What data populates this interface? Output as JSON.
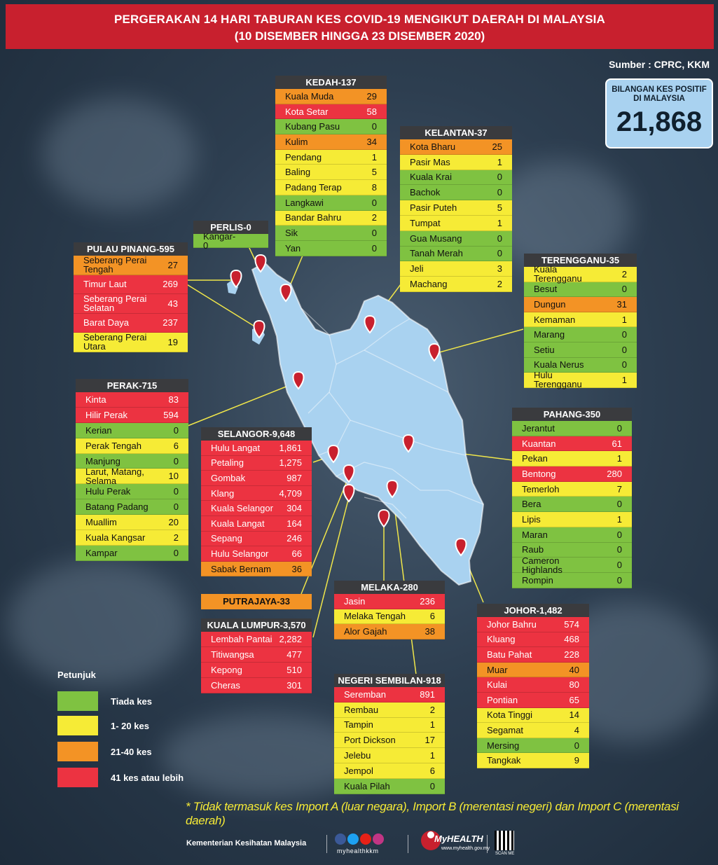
{
  "title_line1": "PERGERAKAN 14 HARI TABURAN KES COVID-19 MENGIKUT DAERAH DI MALAYSIA",
  "title_line2": "(10 DISEMBER HINGGA 23 DISEMBER 2020)",
  "source": "Sumber : CPRC, KKM",
  "total": {
    "label": "BILANGAN KES POSITIF DI MALAYSIA",
    "value": "21,868"
  },
  "colors": {
    "red": "#ec3341",
    "orange": "#f39325",
    "yellow": "#f6eb36",
    "green": "#7fc241",
    "title_red": "#c8202e"
  },
  "states": {
    "kedah": {
      "header": "KEDAH-137",
      "rows": [
        {
          "name": "Kuala Muda",
          "value": "29",
          "level": "orange"
        },
        {
          "name": "Kota Setar",
          "value": "58",
          "level": "red"
        },
        {
          "name": "Kubang Pasu",
          "value": "0",
          "level": "green"
        },
        {
          "name": "Kulim",
          "value": "34",
          "level": "orange"
        },
        {
          "name": "Pendang",
          "value": "1",
          "level": "yellow"
        },
        {
          "name": "Baling",
          "value": "5",
          "level": "yellow"
        },
        {
          "name": "Padang Terap",
          "value": "8",
          "level": "yellow"
        },
        {
          "name": "Langkawi",
          "value": "0",
          "level": "green"
        },
        {
          "name": "Bandar Bahru",
          "value": "2",
          "level": "yellow"
        },
        {
          "name": "Sik",
          "value": "0",
          "level": "green"
        },
        {
          "name": "Yan",
          "value": "0",
          "level": "green"
        }
      ]
    },
    "kelantan": {
      "header": "KELANTAN-37",
      "rows": [
        {
          "name": "Kota Bharu",
          "value": "25",
          "level": "orange"
        },
        {
          "name": "Pasir Mas",
          "value": "1",
          "level": "yellow"
        },
        {
          "name": "Kuala Krai",
          "value": "0",
          "level": "green"
        },
        {
          "name": "Bachok",
          "value": "0",
          "level": "green"
        },
        {
          "name": "Pasir Puteh",
          "value": "5",
          "level": "yellow"
        },
        {
          "name": "Tumpat",
          "value": "1",
          "level": "yellow"
        },
        {
          "name": "Gua Musang",
          "value": "0",
          "level": "green"
        },
        {
          "name": "Tanah Merah",
          "value": "0",
          "level": "green"
        },
        {
          "name": "Jeli",
          "value": "3",
          "level": "yellow"
        },
        {
          "name": "Machang",
          "value": "2",
          "level": "yellow"
        }
      ]
    },
    "perlis": {
      "header": "PERLIS-0",
      "rows": [
        {
          "name": "Kangar-0",
          "value": "",
          "level": "green"
        }
      ]
    },
    "pulau_pinang": {
      "header": "PULAU PINANG-595",
      "rows": [
        {
          "name": "Seberang Perai Tengah",
          "value": "27",
          "level": "orange"
        },
        {
          "name": "Timur Laut",
          "value": "269",
          "level": "red"
        },
        {
          "name": "Seberang Perai Selatan",
          "value": "43",
          "level": "red"
        },
        {
          "name": "Barat Daya",
          "value": "237",
          "level": "red"
        },
        {
          "name": "Seberang Perai Utara",
          "value": "19",
          "level": "yellow"
        }
      ]
    },
    "terengganu": {
      "header": "TERENGGANU-35",
      "rows": [
        {
          "name": "Kuala Terengganu",
          "value": "2",
          "level": "yellow"
        },
        {
          "name": "Besut",
          "value": "0",
          "level": "green"
        },
        {
          "name": "Dungun",
          "value": "31",
          "level": "orange"
        },
        {
          "name": "Kemaman",
          "value": "1",
          "level": "yellow"
        },
        {
          "name": "Marang",
          "value": "0",
          "level": "green"
        },
        {
          "name": "Setiu",
          "value": "0",
          "level": "green"
        },
        {
          "name": "Kuala Nerus",
          "value": "0",
          "level": "green"
        },
        {
          "name": "Hulu Terengganu",
          "value": "1",
          "level": "yellow"
        }
      ]
    },
    "perak": {
      "header": "PERAK-715",
      "rows": [
        {
          "name": "Kinta",
          "value": "83",
          "level": "red"
        },
        {
          "name": "Hilir Perak",
          "value": "594",
          "level": "red"
        },
        {
          "name": "Kerian",
          "value": "0",
          "level": "green"
        },
        {
          "name": "Perak Tengah",
          "value": "6",
          "level": "yellow"
        },
        {
          "name": "Manjung",
          "value": "0",
          "level": "green"
        },
        {
          "name": "Larut, Matang, Selama",
          "value": "10",
          "level": "yellow"
        },
        {
          "name": "Hulu Perak",
          "value": "0",
          "level": "green"
        },
        {
          "name": "Batang Padang",
          "value": "0",
          "level": "green"
        },
        {
          "name": "Muallim",
          "value": "20",
          "level": "yellow"
        },
        {
          "name": "Kuala Kangsar",
          "value": "2",
          "level": "yellow"
        },
        {
          "name": "Kampar",
          "value": "0",
          "level": "green"
        }
      ]
    },
    "selangor": {
      "header": "SELANGOR-9,648",
      "rows": [
        {
          "name": "Hulu Langat",
          "value": "1,861",
          "level": "red"
        },
        {
          "name": "Petaling",
          "value": "1,275",
          "level": "red"
        },
        {
          "name": "Gombak",
          "value": "987",
          "level": "red"
        },
        {
          "name": "Klang",
          "value": "4,709",
          "level": "red"
        },
        {
          "name": "Kuala Selangor",
          "value": "304",
          "level": "red"
        },
        {
          "name": "Kuala Langat",
          "value": "164",
          "level": "red"
        },
        {
          "name": "Sepang",
          "value": "246",
          "level": "red"
        },
        {
          "name": "Hulu Selangor",
          "value": "66",
          "level": "red"
        },
        {
          "name": "Sabak Bernam",
          "value": "36",
          "level": "orange"
        }
      ]
    },
    "pahang": {
      "header": "PAHANG-350",
      "rows": [
        {
          "name": "Jerantut",
          "value": "0",
          "level": "green"
        },
        {
          "name": "Kuantan",
          "value": "61",
          "level": "red"
        },
        {
          "name": "Pekan",
          "value": "1",
          "level": "yellow"
        },
        {
          "name": "Bentong",
          "value": "280",
          "level": "red"
        },
        {
          "name": "Temerloh",
          "value": "7",
          "level": "yellow"
        },
        {
          "name": "Bera",
          "value": "0",
          "level": "green"
        },
        {
          "name": "Lipis",
          "value": "1",
          "level": "yellow"
        },
        {
          "name": "Maran",
          "value": "0",
          "level": "green"
        },
        {
          "name": "Raub",
          "value": "0",
          "level": "green"
        },
        {
          "name": "Cameron Highlands",
          "value": "0",
          "level": "green"
        },
        {
          "name": "Rompin",
          "value": "0",
          "level": "green"
        }
      ]
    },
    "putrajaya": {
      "header": "PUTRAJAYA-33",
      "level": "orange"
    },
    "kuala_lumpur": {
      "header": "KUALA LUMPUR-3,570",
      "rows": [
        {
          "name": "Lembah Pantai",
          "value": "2,282",
          "level": "red"
        },
        {
          "name": "Titiwangsa",
          "value": "477",
          "level": "red"
        },
        {
          "name": "Kepong",
          "value": "510",
          "level": "red"
        },
        {
          "name": "Cheras",
          "value": "301",
          "level": "red"
        }
      ]
    },
    "melaka": {
      "header": "MELAKA-280",
      "rows": [
        {
          "name": "Jasin",
          "value": "236",
          "level": "red"
        },
        {
          "name": "Melaka Tengah",
          "value": "6",
          "level": "yellow"
        },
        {
          "name": "Alor Gajah",
          "value": "38",
          "level": "orange"
        }
      ]
    },
    "negeri_sembilan": {
      "header": "NEGERI SEMBILAN-918",
      "rows": [
        {
          "name": "Seremban",
          "value": "891",
          "level": "red"
        },
        {
          "name": "Rembau",
          "value": "2",
          "level": "yellow"
        },
        {
          "name": "Tampin",
          "value": "1",
          "level": "yellow"
        },
        {
          "name": "Port Dickson",
          "value": "17",
          "level": "yellow"
        },
        {
          "name": "Jelebu",
          "value": "1",
          "level": "yellow"
        },
        {
          "name": "Jempol",
          "value": "6",
          "level": "yellow"
        },
        {
          "name": "Kuala Pilah",
          "value": "0",
          "level": "green"
        }
      ]
    },
    "johor": {
      "header": "JOHOR-1,482",
      "rows": [
        {
          "name": "Johor Bahru",
          "value": "574",
          "level": "red"
        },
        {
          "name": "Kluang",
          "value": "468",
          "level": "red"
        },
        {
          "name": "Batu Pahat",
          "value": "228",
          "level": "red"
        },
        {
          "name": "Muar",
          "value": "40",
          "level": "orange"
        },
        {
          "name": "Kulai",
          "value": "80",
          "level": "red"
        },
        {
          "name": "Pontian",
          "value": "65",
          "level": "red"
        },
        {
          "name": "Kota Tinggi",
          "value": "14",
          "level": "yellow"
        },
        {
          "name": "Segamat",
          "value": "4",
          "level": "yellow"
        },
        {
          "name": "Mersing",
          "value": "0",
          "level": "green"
        },
        {
          "name": "Tangkak",
          "value": "9",
          "level": "yellow"
        }
      ]
    }
  },
  "legend": {
    "title": "Petunjuk",
    "items": [
      {
        "label": "Tiada kes",
        "color": "#7fc241"
      },
      {
        "label": "1- 20 kes",
        "color": "#f6eb36"
      },
      {
        "label": "21-40 kes",
        "color": "#f39325"
      },
      {
        "label": "41 kes atau lebih",
        "color": "#ec3341"
      }
    ]
  },
  "note": "* Tidak termasuk kes Import A (luar negara),  Import B (merentasi negeri) dan Import C (merentasi daerah)",
  "footer": {
    "org": "Kementerian Kesihatan Malaysia",
    "handle": "myhealthkkm",
    "logo": "MyHEALTH",
    "logo_sub": "www.myhealth.gov.my",
    "qr_label": "SCAN ME",
    "social_icons": [
      "facebook-icon",
      "twitter-icon",
      "youtube-icon",
      "instagram-icon"
    ]
  }
}
